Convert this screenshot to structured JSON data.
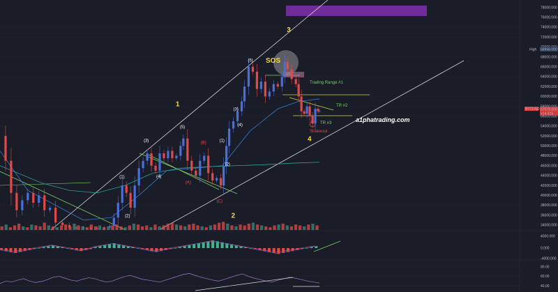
{
  "chart_data": {
    "type": "candlestick",
    "symbol_label": "BTCUSD",
    "price_axis": {
      "ticks": [
        34000,
        36000,
        38000,
        40000,
        42000,
        44000,
        46000,
        48000,
        50000,
        52000,
        54000,
        56000,
        58000,
        60000,
        62000,
        64000,
        66000,
        68000,
        70000,
        72000,
        74000,
        76000,
        78000
      ],
      "tick_labels": [
        "34000.000",
        "36000.000",
        "38000.000",
        "40000.000",
        "42000.000",
        "44000.000",
        "46000.000",
        "48000.000",
        "50000.000",
        "52000.000",
        "54000.000",
        "56000.000",
        "58000.000",
        "60000.000",
        "62000.000",
        "64000.000",
        "66000.000",
        "68000.000",
        "70000.000",
        "72000.000",
        "74000.000",
        "76000.000",
        "78000.000"
      ],
      "range": [
        33000,
        79500
      ]
    },
    "high_marker": {
      "label": "High",
      "value": 68958,
      "value_label": "68958.000"
    },
    "last_price_marker": {
      "value": 57079,
      "value_label": "57079.000",
      "change_label": "+14.415"
    },
    "price_path": [
      [
        0,
        52000
      ],
      [
        8,
        47000
      ],
      [
        16,
        40500
      ],
      [
        24,
        37000
      ],
      [
        32,
        39000
      ],
      [
        40,
        40500
      ],
      [
        48,
        38500
      ],
      [
        56,
        40000
      ],
      [
        64,
        37000
      ],
      [
        72,
        37500
      ],
      [
        80,
        34500
      ],
      [
        90,
        34000
      ],
      [
        100,
        33500
      ],
      [
        110,
        33300
      ],
      [
        120,
        33500
      ],
      [
        130,
        33400
      ],
      [
        140,
        33300
      ],
      [
        150,
        33500
      ],
      [
        158,
        33800
      ],
      [
        164,
        35500
      ],
      [
        170,
        38500
      ],
      [
        176,
        42000
      ],
      [
        182,
        40500
      ],
      [
        188,
        37500
      ],
      [
        194,
        42000
      ],
      [
        200,
        45500
      ],
      [
        206,
        47000
      ],
      [
        212,
        48500
      ],
      [
        218,
        46000
      ],
      [
        224,
        45000
      ],
      [
        230,
        48500
      ],
      [
        236,
        47500
      ],
      [
        242,
        49000
      ],
      [
        248,
        47500
      ],
      [
        254,
        48000
      ],
      [
        260,
        50000
      ],
      [
        264,
        51500
      ],
      [
        270,
        47000
      ],
      [
        276,
        45000
      ],
      [
        282,
        44000
      ],
      [
        288,
        47000
      ],
      [
        294,
        48000
      ],
      [
        300,
        44500
      ],
      [
        306,
        43000
      ],
      [
        312,
        43500
      ],
      [
        318,
        42000
      ],
      [
        322,
        46000
      ],
      [
        326,
        50000
      ],
      [
        330,
        53500
      ],
      [
        336,
        55000
      ],
      [
        342,
        57000
      ],
      [
        348,
        59000
      ],
      [
        352,
        62000
      ],
      [
        358,
        66000
      ],
      [
        364,
        65000
      ],
      [
        370,
        61500
      ],
      [
        376,
        63000
      ],
      [
        382,
        60000
      ],
      [
        388,
        61000
      ],
      [
        394,
        62500
      ],
      [
        400,
        62000
      ],
      [
        406,
        64000
      ],
      [
        410,
        67000
      ],
      [
        414,
        65500
      ],
      [
        420,
        63500
      ],
      [
        426,
        62500
      ],
      [
        430,
        60000
      ],
      [
        434,
        57000
      ],
      [
        438,
        56500
      ],
      [
        442,
        58000
      ],
      [
        446,
        56000
      ],
      [
        450,
        54500
      ],
      [
        454,
        57500
      ],
      [
        458,
        57000
      ],
      [
        460,
        57079
      ]
    ],
    "ma_fast": [
      [
        0,
        49000
      ],
      [
        40,
        41000
      ],
      [
        80,
        38000
      ],
      [
        120,
        35000
      ],
      [
        160,
        35500
      ],
      [
        200,
        40000
      ],
      [
        240,
        45000
      ],
      [
        280,
        45500
      ],
      [
        320,
        46000
      ],
      [
        360,
        53000
      ],
      [
        400,
        57500
      ],
      [
        430,
        59000
      ],
      [
        460,
        59500
      ]
    ],
    "ma_slow": [
      [
        0,
        46000
      ],
      [
        60,
        42500
      ],
      [
        100,
        41000
      ],
      [
        140,
        40500
      ],
      [
        180,
        42000
      ],
      [
        220,
        44500
      ],
      [
        260,
        45500
      ],
      [
        300,
        45800
      ],
      [
        340,
        46000
      ],
      [
        380,
        46200
      ],
      [
        420,
        46500
      ],
      [
        460,
        46700
      ]
    ],
    "volume": [
      4,
      6,
      3,
      5,
      7,
      4,
      3,
      6,
      5,
      4,
      8,
      5,
      4,
      3,
      5,
      6,
      4,
      7,
      5,
      4,
      3,
      6,
      4,
      5,
      3,
      4,
      5,
      6,
      4,
      3,
      5,
      7,
      6,
      4,
      5,
      3,
      6,
      4,
      5,
      7,
      8,
      6,
      5,
      4,
      6,
      7,
      5,
      4,
      3,
      5,
      6,
      8,
      9,
      7,
      5,
      4,
      6,
      5,
      7,
      8,
      6,
      5,
      4,
      3,
      5,
      6,
      7,
      5,
      4,
      6,
      5,
      4,
      6,
      7,
      5
    ],
    "macd_hist": [
      -2,
      -3,
      -4,
      -5,
      -4,
      -3,
      -2,
      -1,
      0,
      1,
      2,
      3,
      2,
      1,
      0,
      -1,
      -2,
      -3,
      -2,
      -1,
      1,
      2,
      3,
      4,
      5,
      4,
      3,
      2,
      1,
      0,
      -1,
      -2,
      -3,
      -4,
      -3,
      -2,
      -1,
      0,
      1,
      2,
      3,
      4,
      5,
      6,
      7,
      8,
      7,
      6,
      5,
      4,
      3,
      2,
      1,
      0,
      -1,
      -2,
      -3,
      -4,
      -5,
      -6,
      -5,
      -4,
      -3,
      -2,
      -1,
      0,
      1,
      2
    ],
    "macd_axis": {
      "ticks": [
        4000,
        0,
        -4000
      ],
      "tick_labels": [
        "4000.000",
        "0.000",
        "-4000.000"
      ]
    },
    "rsi_axis": {
      "ticks": [
        80,
        60,
        40
      ],
      "tick_labels": [
        "80.00",
        "60.00",
        "40.00"
      ]
    },
    "rsi_values": [
      45,
      50,
      48,
      52,
      55,
      50,
      47,
      49,
      53,
      58,
      60,
      56,
      52,
      50,
      54,
      57,
      55,
      51,
      48,
      50,
      55,
      59,
      62,
      58,
      54,
      52,
      50,
      48,
      52,
      56,
      60,
      64,
      66,
      62,
      58,
      55,
      52,
      50,
      54,
      58,
      62,
      65,
      60,
      56,
      53,
      50,
      48,
      52,
      55,
      58,
      56,
      53,
      50,
      48,
      46
    ],
    "wave_labels": [
      {
        "text": "(1)",
        "x": 176,
        "y": 43500,
        "color": "#ffffff"
      },
      {
        "text": "(2)",
        "x": 184,
        "y": 35600,
        "color": "#ffffff"
      },
      {
        "text": "(3)",
        "x": 211,
        "y": 50800,
        "color": "#ffffff"
      },
      {
        "text": "(4)",
        "x": 229,
        "y": 43600,
        "color": "#ffffff"
      },
      {
        "text": "(5)",
        "x": 263,
        "y": 53600,
        "color": "#ffffff"
      },
      {
        "text": "(B)",
        "x": 293,
        "y": 50400,
        "color": "#e05050"
      },
      {
        "text": "(A)",
        "x": 271,
        "y": 42400,
        "color": "#e05050"
      },
      {
        "text": "(C)",
        "x": 316,
        "y": 38600,
        "color": "#e05050"
      },
      {
        "text": "(1)",
        "x": 320,
        "y": 50800,
        "color": "#ffffff"
      },
      {
        "text": "(2)",
        "x": 328,
        "y": 46000,
        "color": "#ffffff"
      },
      {
        "text": "(3)",
        "x": 340,
        "y": 57200,
        "color": "#ffffff"
      },
      {
        "text": "(4)",
        "x": 346,
        "y": 54000,
        "color": "#ffffff"
      },
      {
        "text": "(5)",
        "x": 361,
        "y": 67000,
        "color": "#ffffff"
      }
    ],
    "primary_labels": [
      {
        "text": "1",
        "x": 256,
        "y": 58000
      },
      {
        "text": "2",
        "x": 336,
        "y": 35500
      },
      {
        "text": "3",
        "x": 416,
        "y": 73000
      },
      {
        "text": "4",
        "x": 446,
        "y": 51000
      }
    ],
    "annotations": {
      "sos": "SOS",
      "trading_range_1": "Trading Range #1",
      "tr_2": "TR #2",
      "tr_3": "TR #3",
      "shakeout": "Shakeout",
      "brand": "a1phatrading.com"
    },
    "colors": {
      "background": "#1a1c27",
      "up_candle": "#4a6fd8",
      "down_candle": "#e04a4a",
      "ma_fast": "#2f7fd1",
      "ma_slow": "#2aa39b",
      "channel": "#d8d8d8",
      "wave_green": "#7cd36a",
      "wave_label_yellow": "#f2d84a",
      "target_box": "#7a2fa6",
      "sos_circle": "#b0b0b0",
      "trading_range_line": "#c9d94a"
    }
  }
}
